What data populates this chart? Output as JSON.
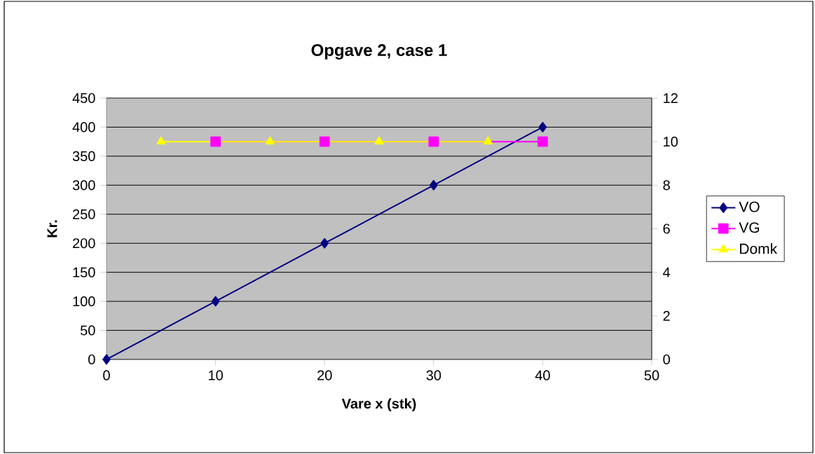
{
  "chart_data": {
    "type": "line",
    "title": "Opgave 2, case 1",
    "xlabel": "Vare x (stk)",
    "ylabel": "Kr.",
    "xlim": [
      0,
      50
    ],
    "xticks": [
      0,
      10,
      20,
      30,
      40,
      50
    ],
    "ylim": [
      0,
      450
    ],
    "yticks": [
      0,
      50,
      100,
      150,
      200,
      250,
      300,
      350,
      400,
      450
    ],
    "y2lim": [
      0,
      12
    ],
    "y2ticks": [
      0,
      2,
      4,
      6,
      8,
      10,
      12
    ],
    "grid": "y",
    "legend": "right",
    "series": [
      {
        "name": "VO",
        "color": "#000080",
        "marker": "diamond",
        "x": [
          0,
          10,
          20,
          30,
          40
        ],
        "values": [
          0,
          100,
          200,
          300,
          400
        ]
      },
      {
        "name": "VG",
        "color": "#ff00ff",
        "marker": "square",
        "axis": "y2",
        "x": [
          10,
          20,
          30,
          40
        ],
        "values": [
          10,
          10,
          10,
          10
        ]
      },
      {
        "name": "Domk",
        "color": "#ffff00",
        "marker": "triangle",
        "axis": "y2",
        "x": [
          5,
          15,
          25,
          35
        ],
        "values": [
          10,
          10,
          10,
          10
        ]
      }
    ]
  }
}
